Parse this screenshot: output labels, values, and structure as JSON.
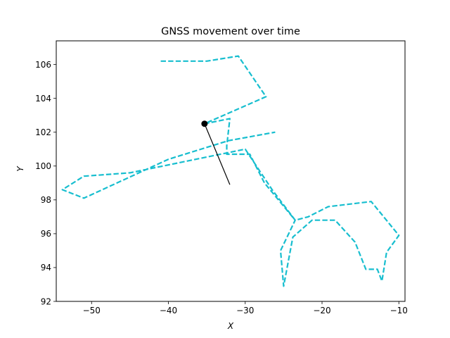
{
  "chart_data": {
    "type": "line",
    "title": "GNSS movement over time",
    "xlabel": "X",
    "ylabel": "Y",
    "xlim": [
      -54.6,
      -9.2
    ],
    "ylim": [
      92.0,
      107.4
    ],
    "xticks": [
      -50,
      -40,
      -30,
      -20,
      -10
    ],
    "yticks": [
      92,
      94,
      96,
      98,
      100,
      102,
      104,
      106
    ],
    "grid": false,
    "legend": "none",
    "colors": {
      "path": "#17becf",
      "marker": "#000000",
      "heading": "#000000"
    },
    "series": [
      {
        "style": "dashed",
        "x": [
          -41.0,
          -35.0,
          -30.9,
          -27.3,
          -35.3,
          -32.0,
          -32.4,
          -32.4,
          -29.4,
          -27.5,
          -23.5,
          -25.4,
          -25.0,
          -23.8,
          -21.3,
          -19.2,
          -18.3,
          -15.7,
          -14.3,
          -12.8,
          -12.2,
          -11.6,
          -10.0,
          -13.6,
          -19.2,
          -21.8,
          -23.5,
          -26.5,
          -30.0,
          -45.0,
          -51.0,
          -53.8,
          -51.0,
          -40.0,
          -32.2,
          -26.1
        ],
        "y": [
          106.2,
          106.2,
          106.5,
          104.1,
          102.5,
          102.8,
          101.2,
          100.7,
          100.7,
          99.0,
          96.8,
          95.0,
          92.9,
          95.8,
          96.8,
          96.8,
          96.8,
          95.5,
          93.9,
          93.9,
          93.2,
          94.9,
          95.9,
          97.9,
          97.6,
          97.0,
          96.8,
          98.6,
          101.0,
          99.6,
          99.4,
          98.6,
          98.1,
          100.4,
          101.5,
          102.0
        ]
      }
    ],
    "current_position": {
      "x": -35.3,
      "y": 102.5
    },
    "heading_end": {
      "x": -32.0,
      "y": 98.9
    }
  }
}
